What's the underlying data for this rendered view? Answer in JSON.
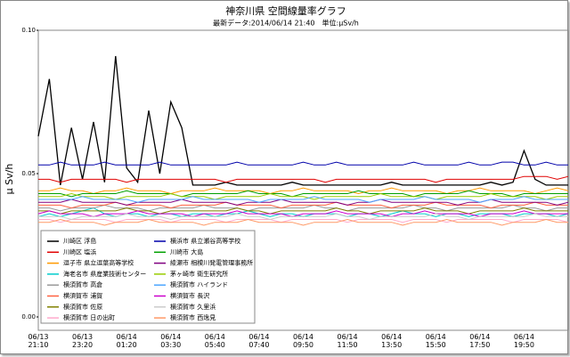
{
  "chart_data": {
    "type": "line",
    "title": "神奈川県 空間線量率グラフ",
    "subtitle": "最新データ:2014/06/14 21:40　単位:μSv/h",
    "y_label": "μ Sv/h",
    "ylim": [
      0,
      0.1
    ],
    "yticks": [
      {
        "value": 0,
        "label": "0.00"
      },
      {
        "value": 0.05,
        "label": "0.05"
      },
      {
        "value": 0.1,
        "label": "0.10"
      }
    ],
    "categories": [
      "06/13\n21:10",
      null,
      null,
      null,
      "06/13\n23:20",
      null,
      null,
      null,
      "06/14\n01:20",
      null,
      null,
      null,
      "06/14\n03:30",
      null,
      null,
      null,
      "06/14\n05:40",
      null,
      null,
      null,
      "06/14\n07:40",
      null,
      null,
      null,
      "06/14\n09:50",
      null,
      null,
      null,
      "06/14\n11:50",
      null,
      null,
      null,
      "06/14\n13:50",
      null,
      null,
      null,
      "06/14\n15:50",
      null,
      null,
      null,
      "06/14\n17:50",
      null,
      null,
      null,
      "06/14\n19:50",
      null,
      null,
      null,
      null
    ],
    "series": [
      {
        "name": "川崎区 浮島",
        "color": "#000000",
        "values": [
          0.063,
          0.083,
          0.046,
          0.066,
          0.048,
          0.068,
          0.047,
          0.091,
          0.052,
          0.047,
          0.072,
          0.05,
          0.075,
          0.066,
          0.046,
          0.046,
          0.046,
          0.047,
          0.046,
          0.046,
          0.046,
          0.046,
          0.046,
          0.047,
          0.046,
          0.046,
          0.046,
          0.046,
          0.046,
          0.046,
          0.046,
          0.046,
          0.047,
          0.046,
          0.046,
          0.046,
          0.046,
          0.046,
          0.046,
          0.046,
          0.046,
          0.047,
          0.046,
          0.047,
          0.058,
          0.048,
          0.046,
          0.046,
          0.046
        ]
      },
      {
        "name": "川崎区 塩浜",
        "color": "#e00000",
        "values": [
          0.048,
          0.048,
          0.047,
          0.048,
          0.048,
          0.048,
          0.048,
          0.048,
          0.047,
          0.048,
          0.048,
          0.048,
          0.048,
          0.048,
          0.048,
          0.048,
          0.048,
          0.047,
          0.048,
          0.048,
          0.048,
          0.048,
          0.048,
          0.048,
          0.048,
          0.048,
          0.047,
          0.048,
          0.048,
          0.048,
          0.048,
          0.048,
          0.048,
          0.048,
          0.048,
          0.048,
          0.047,
          0.048,
          0.048,
          0.048,
          0.048,
          0.048,
          0.048,
          0.048,
          0.049,
          0.049,
          0.049,
          0.048,
          0.049
        ]
      },
      {
        "name": "逗子市 県立逗葉高等学校",
        "color": "#ff9900",
        "values": [
          0.044,
          0.044,
          0.045,
          0.044,
          0.044,
          0.043,
          0.044,
          0.044,
          0.045,
          0.044,
          0.044,
          0.044,
          0.043,
          0.044,
          0.044,
          0.044,
          0.045,
          0.044,
          0.044,
          0.044,
          0.044,
          0.043,
          0.044,
          0.044,
          0.045,
          0.044,
          0.044,
          0.044,
          0.044,
          0.043,
          0.044,
          0.044,
          0.045,
          0.044,
          0.044,
          0.044,
          0.044,
          0.043,
          0.044,
          0.044,
          0.045,
          0.044,
          0.044,
          0.044,
          0.044,
          0.043,
          0.044,
          0.045,
          0.044
        ]
      },
      {
        "name": "海老名市 県産業技術センター",
        "color": "#00cccc",
        "values": [
          0.035,
          0.036,
          0.035,
          0.036,
          0.037,
          0.038,
          0.036,
          0.035,
          0.036,
          0.036,
          0.035,
          0.036,
          0.036,
          0.035,
          0.036,
          0.036,
          0.035,
          0.036,
          0.036,
          0.037,
          0.036,
          0.035,
          0.036,
          0.036,
          0.035,
          0.036,
          0.036,
          0.036,
          0.035,
          0.036,
          0.036,
          0.035,
          0.036,
          0.037,
          0.036,
          0.036,
          0.035,
          0.036,
          0.036,
          0.035,
          0.036,
          0.036,
          0.036,
          0.035,
          0.036,
          0.036,
          0.036,
          0.035,
          0.036
        ]
      },
      {
        "name": "横須賀市 高倉",
        "color": "#999999",
        "values": [
          0.038,
          0.038,
          0.037,
          0.038,
          0.038,
          0.038,
          0.039,
          0.038,
          0.038,
          0.038,
          0.037,
          0.038,
          0.038,
          0.038,
          0.038,
          0.039,
          0.038,
          0.038,
          0.038,
          0.037,
          0.038,
          0.038,
          0.038,
          0.038,
          0.038,
          0.039,
          0.038,
          0.038,
          0.037,
          0.038,
          0.038,
          0.038,
          0.038,
          0.038,
          0.039,
          0.038,
          0.038,
          0.037,
          0.038,
          0.038,
          0.038,
          0.038,
          0.038,
          0.039,
          0.038,
          0.038,
          0.037,
          0.038,
          0.038
        ]
      },
      {
        "name": "横須賀市 浦賀",
        "color": "#ff6040",
        "values": [
          0.039,
          0.039,
          0.039,
          0.038,
          0.039,
          0.039,
          0.039,
          0.04,
          0.039,
          0.039,
          0.039,
          0.039,
          0.038,
          0.039,
          0.039,
          0.039,
          0.039,
          0.04,
          0.039,
          0.039,
          0.039,
          0.039,
          0.038,
          0.039,
          0.039,
          0.039,
          0.039,
          0.04,
          0.039,
          0.039,
          0.039,
          0.039,
          0.038,
          0.039,
          0.039,
          0.039,
          0.04,
          0.039,
          0.039,
          0.039,
          0.039,
          0.038,
          0.039,
          0.039,
          0.039,
          0.04,
          0.039,
          0.039,
          0.039
        ]
      },
      {
        "name": "横須賀市 佐原",
        "color": "#808000",
        "values": [
          0.037,
          0.037,
          0.036,
          0.037,
          0.037,
          0.037,
          0.037,
          0.037,
          0.038,
          0.037,
          0.037,
          0.036,
          0.037,
          0.037,
          0.037,
          0.037,
          0.037,
          0.037,
          0.038,
          0.037,
          0.037,
          0.036,
          0.037,
          0.037,
          0.037,
          0.037,
          0.037,
          0.038,
          0.037,
          0.037,
          0.036,
          0.037,
          0.037,
          0.037,
          0.037,
          0.038,
          0.037,
          0.037,
          0.037,
          0.036,
          0.037,
          0.037,
          0.037,
          0.037,
          0.038,
          0.037,
          0.037,
          0.037,
          0.037
        ]
      },
      {
        "name": "横須賀市 日の出町",
        "color": "#ffaacc",
        "values": [
          0.034,
          0.034,
          0.033,
          0.034,
          0.034,
          0.034,
          0.034,
          0.033,
          0.034,
          0.034,
          0.034,
          0.034,
          0.033,
          0.034,
          0.034,
          0.034,
          0.034,
          0.033,
          0.034,
          0.034,
          0.034,
          0.034,
          0.033,
          0.034,
          0.034,
          0.034,
          0.034,
          0.034,
          0.033,
          0.034,
          0.034,
          0.034,
          0.034,
          0.033,
          0.034,
          0.034,
          0.034,
          0.033,
          0.034,
          0.034,
          0.034,
          0.034,
          0.034,
          0.033,
          0.034,
          0.034,
          0.034,
          0.034,
          0.033
        ]
      },
      {
        "name": "横浜市 県立瀬谷高等学校",
        "color": "#0000aa",
        "values": [
          0.053,
          0.053,
          0.054,
          0.053,
          0.053,
          0.053,
          0.054,
          0.053,
          0.053,
          0.053,
          0.053,
          0.054,
          0.053,
          0.053,
          0.053,
          0.053,
          0.053,
          0.053,
          0.054,
          0.053,
          0.053,
          0.053,
          0.053,
          0.053,
          0.054,
          0.053,
          0.053,
          0.054,
          0.053,
          0.053,
          0.053,
          0.053,
          0.053,
          0.053,
          0.054,
          0.053,
          0.053,
          0.053,
          0.053,
          0.054,
          0.053,
          0.053,
          0.054,
          0.054,
          0.053,
          0.053,
          0.054,
          0.053,
          0.053
        ]
      },
      {
        "name": "川崎市 大島",
        "color": "#00a000",
        "values": [
          0.043,
          0.043,
          0.043,
          0.042,
          0.043,
          0.043,
          0.043,
          0.043,
          0.044,
          0.043,
          0.043,
          0.043,
          0.043,
          0.042,
          0.043,
          0.043,
          0.043,
          0.043,
          0.043,
          0.044,
          0.043,
          0.043,
          0.043,
          0.042,
          0.043,
          0.043,
          0.043,
          0.043,
          0.043,
          0.044,
          0.043,
          0.043,
          0.043,
          0.043,
          0.042,
          0.043,
          0.043,
          0.043,
          0.043,
          0.044,
          0.043,
          0.043,
          0.043,
          0.042,
          0.043,
          0.043,
          0.043,
          0.043,
          0.043
        ]
      },
      {
        "name": "綾瀬市 相模川発電管理事務所",
        "color": "#800080",
        "values": [
          0.04,
          0.04,
          0.04,
          0.041,
          0.04,
          0.04,
          0.04,
          0.04,
          0.039,
          0.04,
          0.04,
          0.04,
          0.04,
          0.041,
          0.04,
          0.04,
          0.04,
          0.04,
          0.039,
          0.04,
          0.04,
          0.04,
          0.041,
          0.04,
          0.04,
          0.04,
          0.04,
          0.04,
          0.039,
          0.04,
          0.04,
          0.041,
          0.04,
          0.04,
          0.04,
          0.04,
          0.04,
          0.04,
          0.039,
          0.04,
          0.04,
          0.041,
          0.04,
          0.04,
          0.04,
          0.04,
          0.04,
          0.039,
          0.04
        ]
      },
      {
        "name": "茅ヶ崎市 衛生研究所",
        "color": "#99cc00",
        "values": [
          0.042,
          0.042,
          0.042,
          0.043,
          0.042,
          0.042,
          0.042,
          0.041,
          0.042,
          0.042,
          0.042,
          0.042,
          0.043,
          0.042,
          0.042,
          0.042,
          0.041,
          0.042,
          0.042,
          0.042,
          0.042,
          0.043,
          0.042,
          0.042,
          0.042,
          0.041,
          0.042,
          0.042,
          0.042,
          0.042,
          0.042,
          0.043,
          0.042,
          0.042,
          0.042,
          0.042,
          0.041,
          0.042,
          0.042,
          0.042,
          0.042,
          0.043,
          0.042,
          0.042,
          0.042,
          0.042,
          0.041,
          0.042,
          0.042
        ]
      },
      {
        "name": "横須賀市 ハイランド",
        "color": "#4da6ff",
        "values": [
          0.041,
          0.041,
          0.041,
          0.041,
          0.042,
          0.041,
          0.041,
          0.041,
          0.041,
          0.04,
          0.041,
          0.041,
          0.041,
          0.041,
          0.042,
          0.041,
          0.041,
          0.041,
          0.041,
          0.041,
          0.04,
          0.041,
          0.041,
          0.041,
          0.041,
          0.042,
          0.041,
          0.041,
          0.041,
          0.041,
          0.04,
          0.041,
          0.041,
          0.041,
          0.041,
          0.042,
          0.041,
          0.041,
          0.041,
          0.041,
          0.04,
          0.041,
          0.041,
          0.041,
          0.042,
          0.041,
          0.041,
          0.041,
          0.041
        ]
      },
      {
        "name": "横須賀市 長沢",
        "color": "#cc00cc",
        "values": [
          0.036,
          0.037,
          0.036,
          0.036,
          0.036,
          0.035,
          0.036,
          0.036,
          0.036,
          0.037,
          0.036,
          0.036,
          0.036,
          0.036,
          0.035,
          0.036,
          0.036,
          0.036,
          0.037,
          0.036,
          0.036,
          0.036,
          0.036,
          0.035,
          0.036,
          0.036,
          0.036,
          0.037,
          0.036,
          0.036,
          0.036,
          0.036,
          0.035,
          0.036,
          0.036,
          0.037,
          0.036,
          0.036,
          0.036,
          0.036,
          0.035,
          0.036,
          0.036,
          0.036,
          0.037,
          0.036,
          0.036,
          0.036,
          0.036
        ]
      },
      {
        "name": "横須賀市 久里浜",
        "color": "#cccccc",
        "values": [
          0.035,
          0.035,
          0.035,
          0.034,
          0.035,
          0.035,
          0.035,
          0.035,
          0.036,
          0.035,
          0.035,
          0.035,
          0.034,
          0.035,
          0.035,
          0.035,
          0.035,
          0.035,
          0.036,
          0.035,
          0.035,
          0.034,
          0.035,
          0.035,
          0.035,
          0.035,
          0.035,
          0.036,
          0.035,
          0.035,
          0.034,
          0.035,
          0.035,
          0.035,
          0.035,
          0.035,
          0.036,
          0.035,
          0.035,
          0.034,
          0.035,
          0.035,
          0.035,
          0.035,
          0.035,
          0.036,
          0.035,
          0.035,
          0.035
        ]
      },
      {
        "name": "横須賀市 西逸見",
        "color": "#ff9966",
        "values": [
          0.033,
          0.033,
          0.034,
          0.033,
          0.033,
          0.033,
          0.032,
          0.033,
          0.033,
          0.033,
          0.034,
          0.033,
          0.033,
          0.033,
          0.033,
          0.032,
          0.033,
          0.033,
          0.033,
          0.034,
          0.033,
          0.033,
          0.033,
          0.033,
          0.032,
          0.033,
          0.033,
          0.033,
          0.034,
          0.033,
          0.033,
          0.033,
          0.033,
          0.032,
          0.033,
          0.033,
          0.033,
          0.034,
          0.033,
          0.033,
          0.033,
          0.033,
          0.032,
          0.033,
          0.033,
          0.033,
          0.034,
          0.033,
          0.033
        ]
      }
    ]
  }
}
